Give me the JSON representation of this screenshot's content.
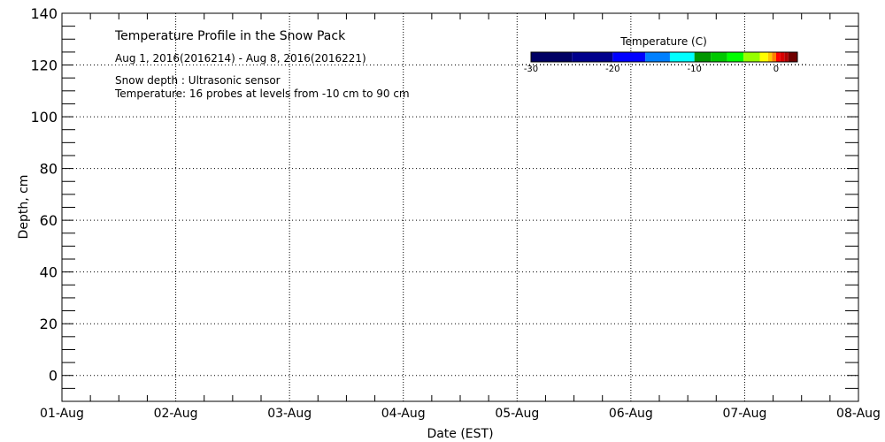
{
  "chart_data": {
    "type": "heatmap",
    "title": "Temperature Profile in the Snow Pack",
    "subtitle": "Aug  1, 2016(2016214) - Aug  8, 2016(2016221)",
    "annotations": [
      "Snow depth : Ultrasonic sensor",
      "Temperature: 16 probes at levels from -10 cm to 90 cm"
    ],
    "xlabel": "Date (EST)",
    "ylabel": "Depth, cm",
    "x_ticks": [
      "01-Aug",
      "02-Aug",
      "03-Aug",
      "04-Aug",
      "05-Aug",
      "06-Aug",
      "07-Aug",
      "08-Aug"
    ],
    "ylim": [
      -10,
      140
    ],
    "y_ticks": [
      0,
      20,
      40,
      60,
      80,
      100,
      120,
      140
    ],
    "grid": true,
    "values": [],
    "colorbar": {
      "title": "Temperature (C)",
      "range": [
        -30,
        2.6
      ],
      "tick_values": [
        -30,
        -20,
        -10,
        0
      ],
      "tick_labels": [
        "-30",
        "-20",
        "-10",
        "0"
      ],
      "colors": [
        "#000064",
        "#00008c",
        "#0000ff",
        "#0080ff",
        "#00ffff",
        "#009600",
        "#00c800",
        "#00ff00",
        "#96ff00",
        "#ffff00",
        "#ffc800",
        "#ff8000",
        "#ff0000",
        "#d80000",
        "#b00000",
        "#700000"
      ],
      "bounds": [
        -30,
        -25,
        -20,
        -16,
        -13,
        -10,
        -8,
        -6,
        -4,
        -2,
        -1,
        -0.5,
        0,
        0.5,
        1,
        1.5,
        2.6
      ]
    }
  }
}
